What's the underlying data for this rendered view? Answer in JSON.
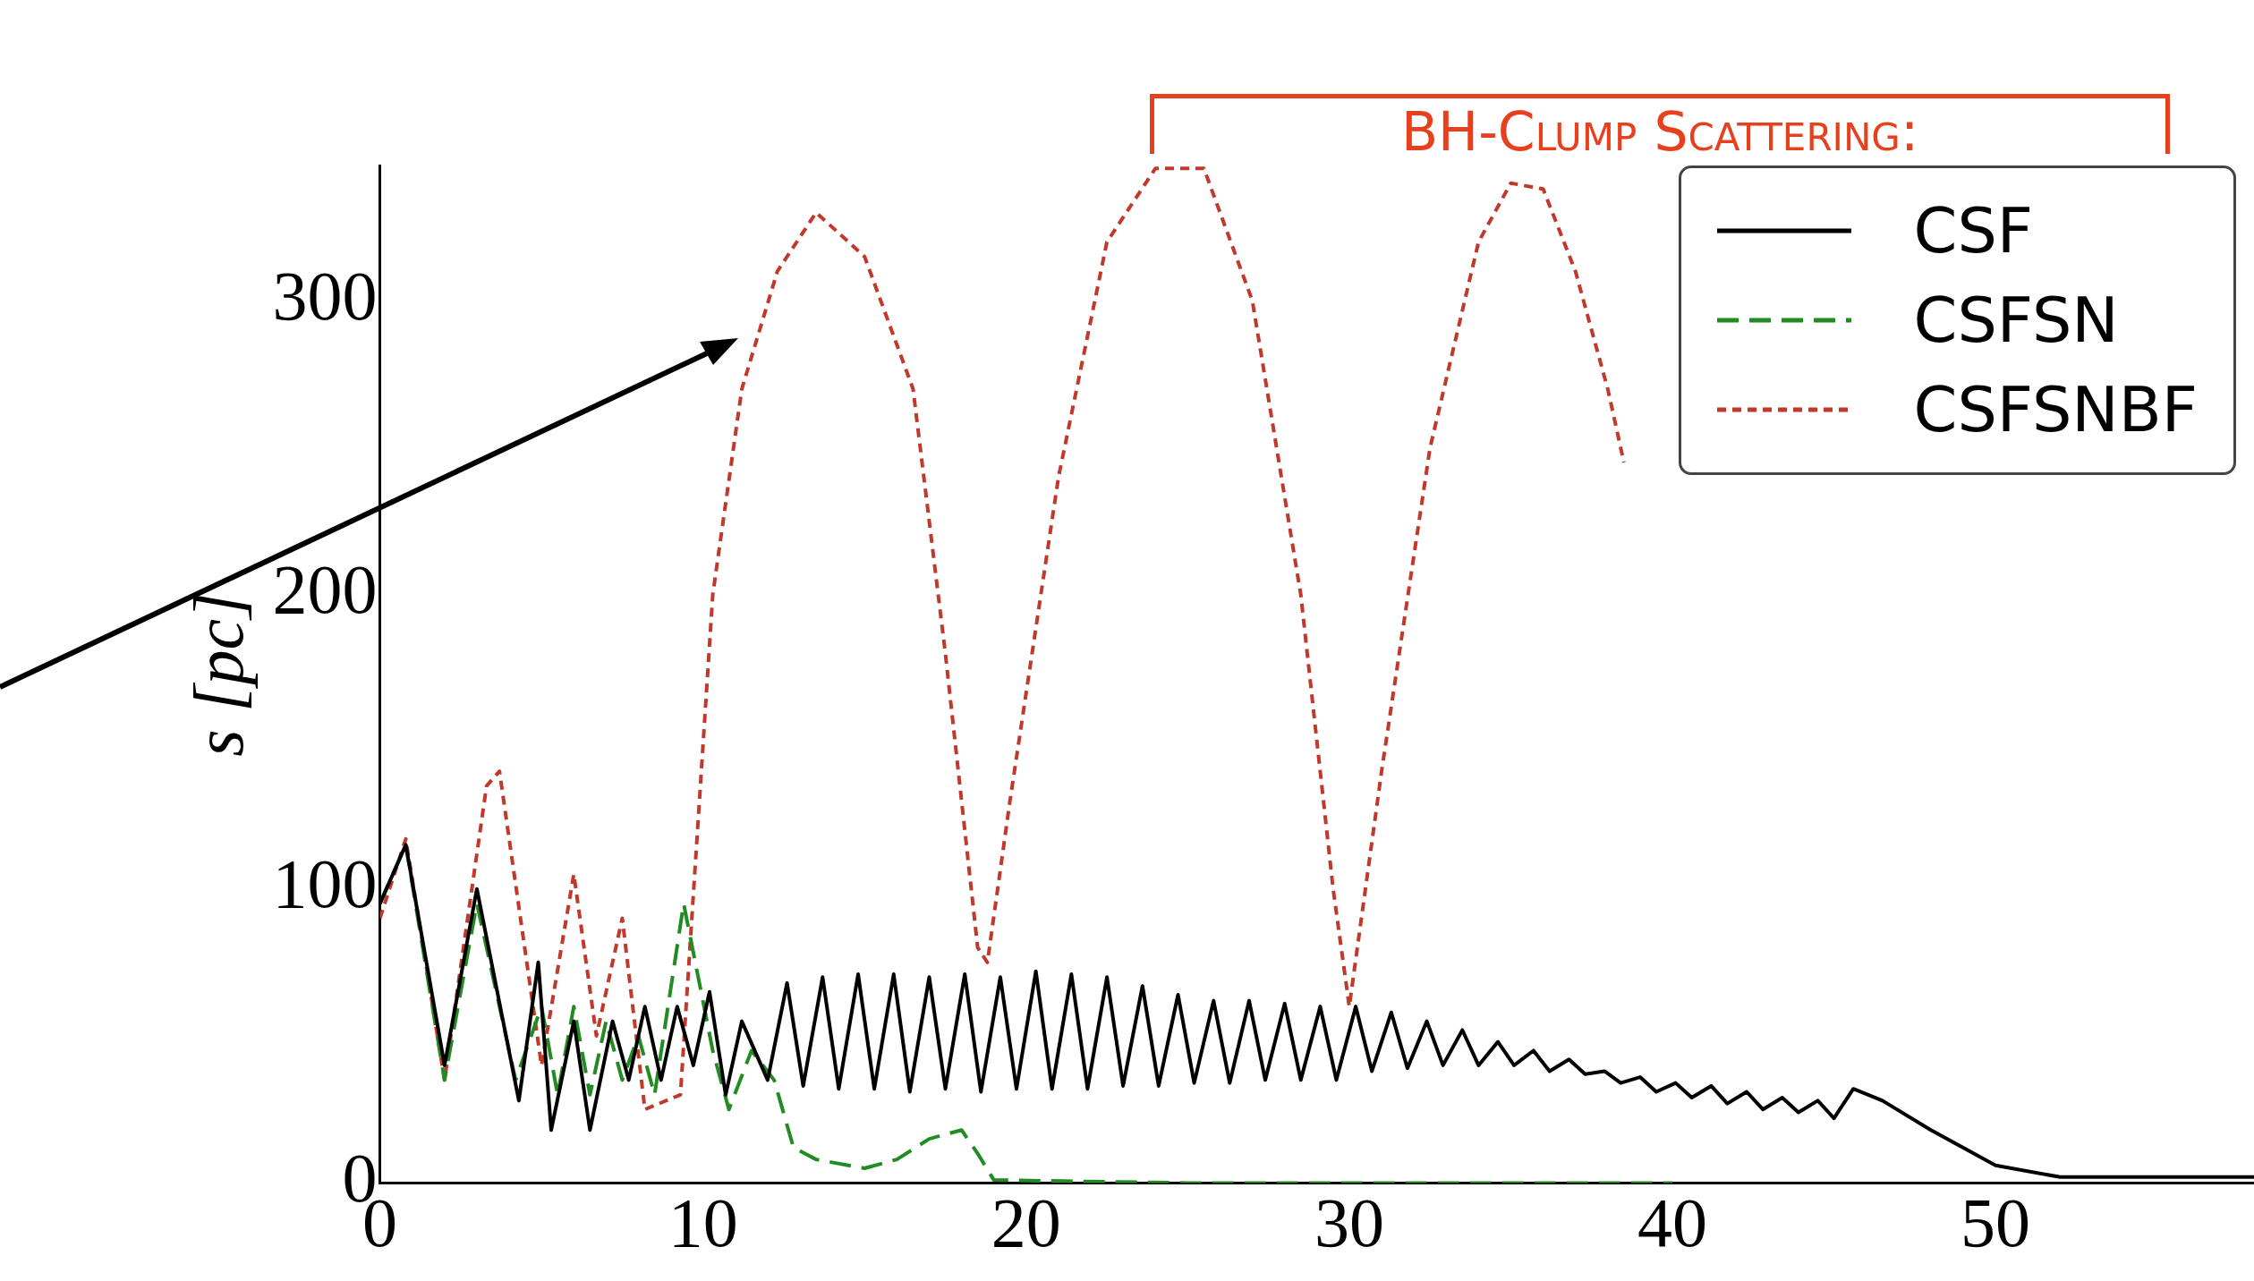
{
  "chart_data": {
    "type": "line",
    "ylabel": "s [pc]",
    "annotations": [
      "BH-Clump Scattering:"
    ],
    "xlim": [
      0,
      58
    ],
    "ylim": [
      0,
      346
    ],
    "xticks": [
      0,
      10,
      20,
      30,
      40,
      50
    ],
    "yticks": [
      0,
      100,
      200,
      300
    ],
    "grid": false,
    "legend": "top right",
    "marker": "none",
    "series": [
      {
        "name": "CSF",
        "color": "#000000",
        "line_style": "solid",
        "x": [
          0,
          0.8,
          2,
          3,
          4.3,
          4.9,
          5.3,
          6,
          6.5,
          7.2,
          7.7,
          8.2,
          8.7,
          9.2,
          9.7,
          10.2,
          10.7,
          11.2,
          12,
          12.6,
          13.1,
          13.7,
          14.2,
          14.8,
          15.3,
          15.9,
          16.4,
          17,
          17.5,
          18.1,
          18.6,
          19.2,
          19.7,
          20.3,
          20.8,
          21.4,
          21.9,
          22.5,
          23,
          23.6,
          24.1,
          24.7,
          25.2,
          25.8,
          26.3,
          26.9,
          27.4,
          28,
          28.5,
          29.1,
          29.6,
          30.2,
          30.7,
          31.3,
          31.8,
          32.4,
          32.9,
          33.5,
          34,
          34.6,
          35.1,
          35.7,
          36.2,
          36.8,
          37.3,
          37.9,
          38.4,
          39,
          39.5,
          40.1,
          40.6,
          41.2,
          41.7,
          42.3,
          42.8,
          43.4,
          43.9,
          44.5,
          45,
          45.6,
          46.5,
          48,
          50,
          52,
          55,
          58
        ],
        "values": [
          95,
          115,
          40,
          100,
          28,
          75,
          18,
          55,
          18,
          55,
          35,
          60,
          35,
          60,
          40,
          65,
          30,
          55,
          35,
          68,
          33,
          70,
          32,
          71,
          32,
          71,
          31,
          70,
          32,
          71,
          31,
          70,
          32,
          72,
          32,
          71,
          32,
          70,
          33,
          67,
          33,
          64,
          34,
          62,
          34,
          62,
          35,
          61,
          35,
          60,
          35,
          60,
          38,
          58,
          39,
          55,
          40,
          52,
          40,
          48,
          40,
          45,
          38,
          42,
          37,
          38,
          34,
          36,
          31,
          34,
          29,
          33,
          27,
          31,
          25,
          29,
          24,
          28,
          22,
          32,
          28,
          18,
          6,
          2,
          2,
          2
        ]
      },
      {
        "name": "CSFSN",
        "color": "#228b22",
        "line_style": "dashed",
        "x": [
          0,
          0.8,
          2,
          3,
          4.2,
          5,
          5.5,
          6,
          6.5,
          7,
          7.5,
          8,
          8.5,
          9.4,
          10.3,
          10.8,
          11.5,
          12.2,
          12.8,
          13.5,
          15,
          16,
          17,
          18,
          18.5,
          19,
          25,
          40
        ],
        "values": [
          95,
          115,
          35,
          95,
          35,
          60,
          30,
          60,
          30,
          55,
          35,
          50,
          30,
          95,
          45,
          25,
          45,
          35,
          12,
          8,
          5,
          8,
          15,
          18,
          10,
          1,
          0,
          0
        ]
      },
      {
        "name": "CSFSNBF",
        "color": "#c0392b",
        "line_style": "dotted",
        "x": [
          0,
          0.8,
          2,
          3.3,
          3.7,
          5,
          6,
          6.7,
          7.5,
          8.2,
          9.3,
          10.3,
          11.2,
          12.3,
          13.5,
          15,
          16.5,
          17.5,
          18.5,
          18.8,
          19.5,
          21,
          22.5,
          24,
          25.5,
          27,
          28.5,
          29.5,
          30,
          31,
          32.5,
          34,
          35,
          36,
          37,
          38,
          38.5
        ],
        "values": [
          90,
          117,
          35,
          135,
          140,
          40,
          105,
          50,
          90,
          25,
          30,
          200,
          270,
          310,
          330,
          315,
          270,
          180,
          80,
          75,
          130,
          240,
          320,
          345,
          345,
          300,
          200,
          100,
          60,
          140,
          250,
          320,
          340,
          338,
          310,
          270,
          245
        ]
      }
    ]
  }
}
